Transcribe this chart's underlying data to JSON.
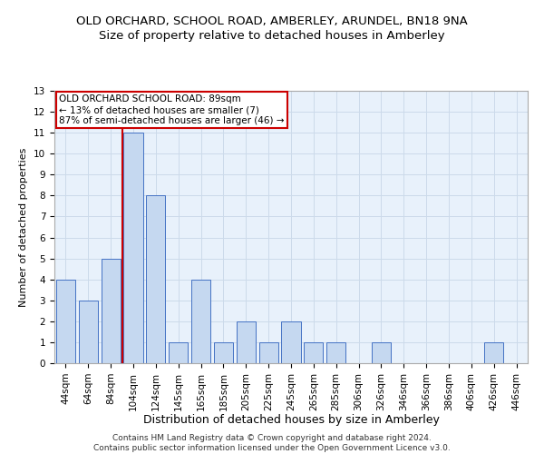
{
  "title": "OLD ORCHARD, SCHOOL ROAD, AMBERLEY, ARUNDEL, BN18 9NA",
  "subtitle": "Size of property relative to detached houses in Amberley",
  "xlabel": "Distribution of detached houses by size in Amberley",
  "ylabel": "Number of detached properties",
  "categories": [
    "44sqm",
    "64sqm",
    "84sqm",
    "104sqm",
    "124sqm",
    "145sqm",
    "165sqm",
    "185sqm",
    "205sqm",
    "225sqm",
    "245sqm",
    "265sqm",
    "285sqm",
    "306sqm",
    "326sqm",
    "346sqm",
    "366sqm",
    "386sqm",
    "406sqm",
    "426sqm",
    "446sqm"
  ],
  "values": [
    4,
    3,
    5,
    11,
    8,
    1,
    4,
    1,
    2,
    1,
    2,
    1,
    1,
    0,
    1,
    0,
    0,
    0,
    0,
    1,
    0
  ],
  "bar_color": "#c5d8f0",
  "bar_edge_color": "#4472c4",
  "property_line_x": 2.5,
  "property_line_color": "#cc0000",
  "ylim": [
    0,
    13
  ],
  "yticks": [
    0,
    1,
    2,
    3,
    4,
    5,
    6,
    7,
    8,
    9,
    10,
    11,
    12,
    13
  ],
  "annotation_text": "OLD ORCHARD SCHOOL ROAD: 89sqm\n← 13% of detached houses are smaller (7)\n87% of semi-detached houses are larger (46) →",
  "annotation_box_color": "#ffffff",
  "annotation_box_edge": "#cc0000",
  "footer_line1": "Contains HM Land Registry data © Crown copyright and database right 2024.",
  "footer_line2": "Contains public sector information licensed under the Open Government Licence v3.0.",
  "title_fontsize": 9.5,
  "subtitle_fontsize": 9.5,
  "xlabel_fontsize": 9,
  "ylabel_fontsize": 8,
  "tick_fontsize": 7.5,
  "annotation_fontsize": 7.5,
  "footer_fontsize": 6.5,
  "grid_color": "#ccdaea",
  "background_color": "#e8f1fb"
}
